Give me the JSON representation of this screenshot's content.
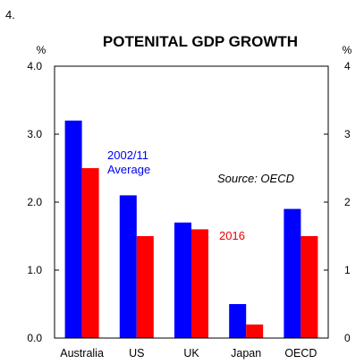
{
  "page_number": "4.",
  "chart_data": {
    "type": "bar",
    "title": "POTENITAL GDP GROWTH",
    "left_unit": "%",
    "right_unit": "%",
    "categories": [
      "Australia",
      "US",
      "UK",
      "Japan",
      "OECD"
    ],
    "series": [
      {
        "label": "2002/11 Average",
        "label_lines": [
          "2002/11",
          "Average"
        ],
        "color": "#0000ff",
        "values": [
          3.2,
          2.1,
          1.7,
          0.5,
          1.9
        ]
      },
      {
        "label": "2016",
        "label_lines": [
          "2016"
        ],
        "color": "#ff0000",
        "values": [
          2.5,
          1.5,
          1.6,
          0.2,
          1.5
        ]
      }
    ],
    "ylim": [
      0,
      4
    ],
    "left_ticks": [
      "0.0",
      "1.0",
      "2.0",
      "3.0",
      "4.0"
    ],
    "right_ticks": [
      "0",
      "1",
      "2",
      "3",
      "4"
    ],
    "source": "Source: OECD",
    "grid": false
  }
}
